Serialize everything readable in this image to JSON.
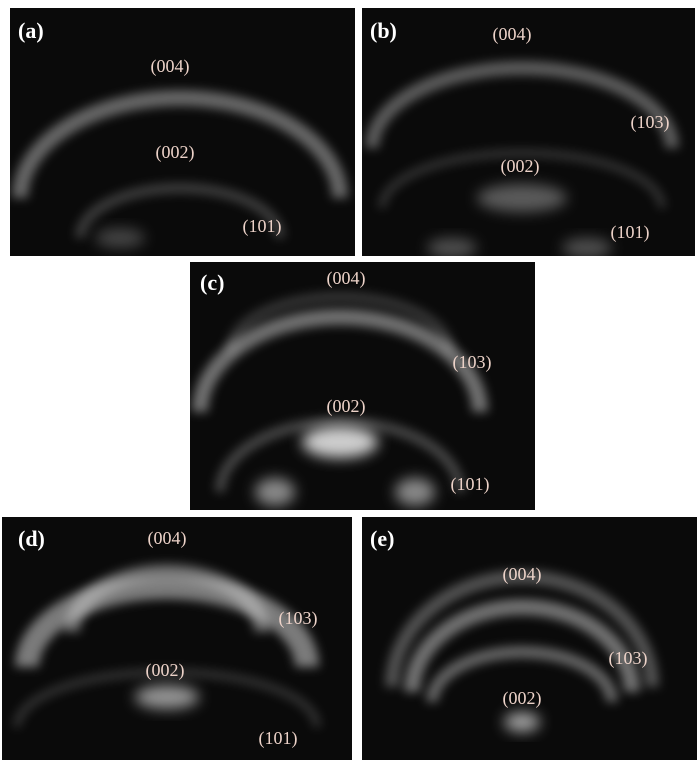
{
  "panels": [
    {
      "label": "(a)",
      "annotations": [
        "(004)",
        "(002)",
        "(101)"
      ]
    },
    {
      "label": "(b)",
      "annotations": [
        "(004)",
        "(103)",
        "(002)",
        "(101)"
      ]
    },
    {
      "label": "(c)",
      "annotations": [
        "(004)",
        "(103)",
        "(002)",
        "(101)"
      ]
    },
    {
      "label": "(d)",
      "annotations": [
        "(004)",
        "(103)",
        "(002)",
        "(101)"
      ]
    },
    {
      "label": "(e)",
      "annotations": [
        "(004)",
        "(103)",
        "(002)"
      ]
    }
  ]
}
